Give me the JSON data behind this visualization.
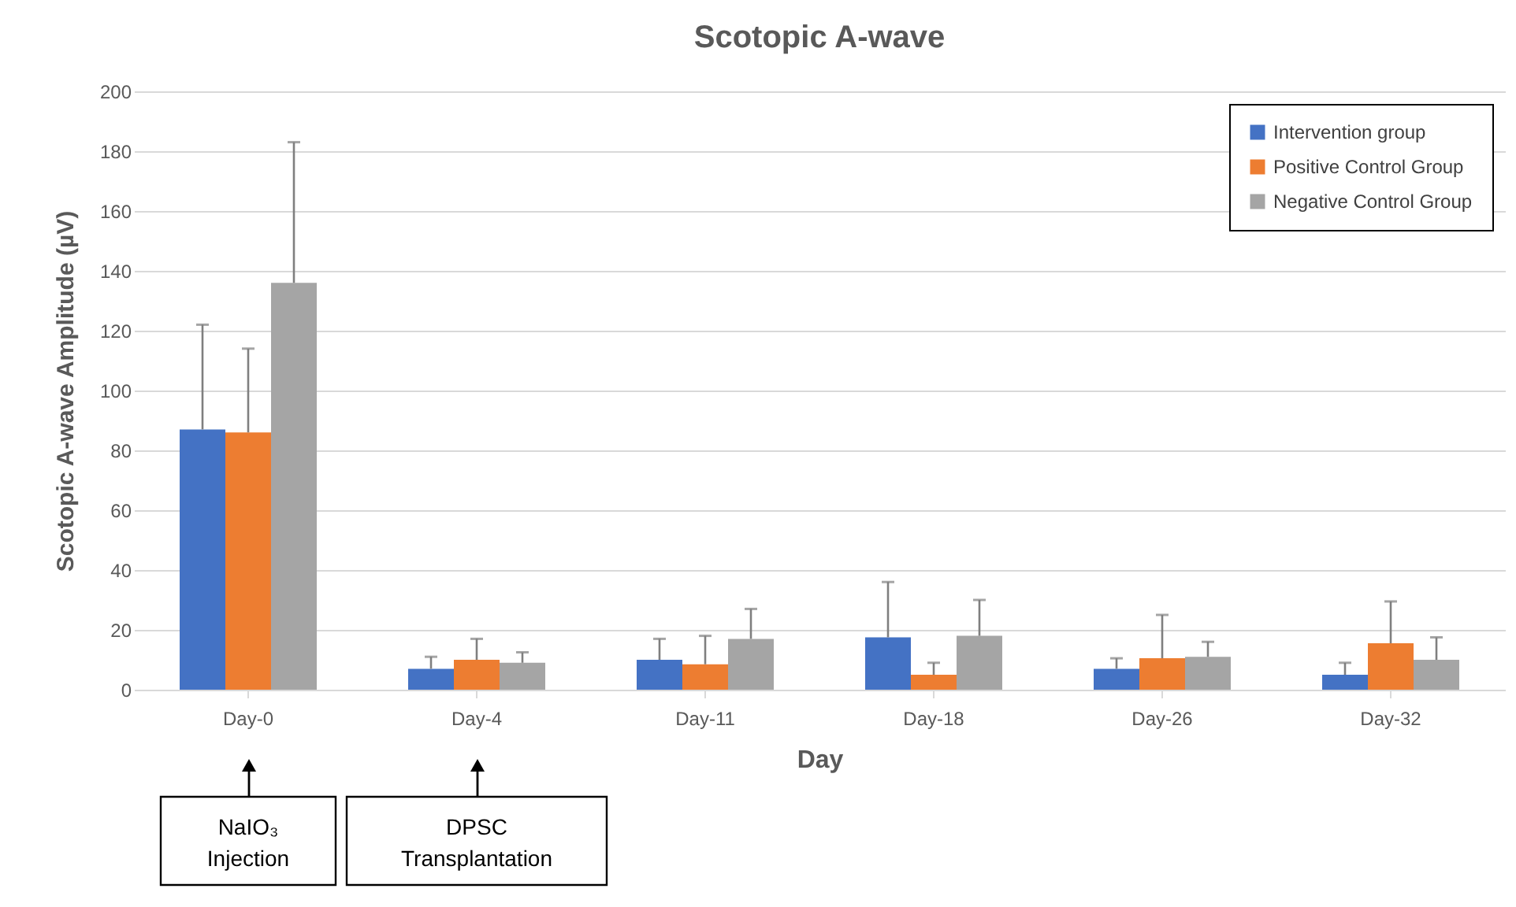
{
  "chart_data": {
    "type": "bar",
    "title": "Scotopic A-wave",
    "xlabel": "Day",
    "ylabel": "Scotopic A-wave Amplitude (µV)",
    "categories": [
      "Day-0",
      "Day-4",
      "Day-11",
      "Day-18",
      "Day-26",
      "Day-32"
    ],
    "series": [
      {
        "name": "Intervention group",
        "color": "#4472c4",
        "values": [
          87,
          7,
          10,
          17.5,
          7,
          5
        ],
        "errors": [
          [
            87,
            122
          ],
          [
            7,
            11
          ],
          [
            10,
            17
          ],
          [
            17.5,
            36
          ],
          [
            7,
            10.5
          ],
          [
            5,
            9
          ]
        ]
      },
      {
        "name": "Positive Control Group",
        "color": "#ed7d31",
        "values": [
          86,
          10,
          8.5,
          5,
          10.5,
          15.5
        ],
        "errors": [
          [
            86,
            114
          ],
          [
            10,
            17
          ],
          [
            8.5,
            18
          ],
          [
            5,
            9
          ],
          [
            10.5,
            25
          ],
          [
            15.5,
            29.5
          ]
        ]
      },
      {
        "name": "Negative Control Group",
        "color": "#a5a5a5",
        "values": [
          136,
          9,
          17,
          18,
          11,
          10
        ],
        "errors": [
          [
            136,
            183
          ],
          [
            9,
            12.5
          ],
          [
            17,
            27
          ],
          [
            18,
            30
          ],
          [
            11,
            16
          ],
          [
            10,
            17.5
          ]
        ]
      }
    ],
    "ylim": [
      0,
      200
    ],
    "yticks": [
      0,
      20,
      40,
      60,
      80,
      100,
      120,
      140,
      160,
      180,
      200
    ],
    "grid": "y",
    "legend": "top right",
    "annotations": [
      "NaIO₃ Injection",
      "DPSC Transplantation"
    ]
  }
}
